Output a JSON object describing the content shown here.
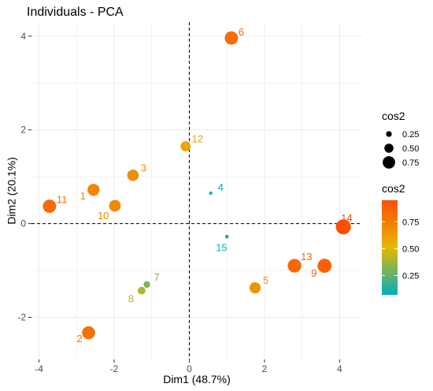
{
  "chart_data": {
    "type": "scatter",
    "title": "Individuals - PCA",
    "xlabel": "Dim1 (48.7%)",
    "ylabel": "Dim2 (20.1%)",
    "xlim": [
      -4.2,
      4.6
    ],
    "ylim": [
      -2.9,
      4.3
    ],
    "x_ticks": [
      -4,
      -2,
      0,
      2,
      4
    ],
    "y_ticks": [
      -2,
      0,
      2,
      4
    ],
    "grid": true,
    "reference_lines": {
      "x": 0,
      "y": 0
    },
    "points": [
      {
        "label": "1",
        "x": -2.55,
        "y": 0.72,
        "cos2": 0.72
      },
      {
        "label": "2",
        "x": -2.68,
        "y": -2.33,
        "cos2": 0.8
      },
      {
        "label": "3",
        "x": -1.5,
        "y": 1.03,
        "cos2": 0.68
      },
      {
        "label": "4",
        "x": 0.57,
        "y": 0.65,
        "cos2": 0.07
      },
      {
        "label": "5",
        "x": 1.75,
        "y": -1.37,
        "cos2": 0.66
      },
      {
        "label": "6",
        "x": 1.12,
        "y": 3.96,
        "cos2": 0.82
      },
      {
        "label": "7",
        "x": -1.13,
        "y": -1.3,
        "cos2": 0.32
      },
      {
        "label": "8",
        "x": -1.27,
        "y": -1.43,
        "cos2": 0.4
      },
      {
        "label": "9",
        "x": 3.6,
        "y": -0.9,
        "cos2": 0.87
      },
      {
        "label": "10",
        "x": -1.98,
        "y": 0.38,
        "cos2": 0.7
      },
      {
        "label": "11",
        "x": -3.72,
        "y": 0.37,
        "cos2": 0.82
      },
      {
        "label": "12",
        "x": -0.1,
        "y": 1.65,
        "cos2": 0.58
      },
      {
        "label": "13",
        "x": 2.8,
        "y": -0.9,
        "cos2": 0.84
      },
      {
        "label": "14",
        "x": 4.1,
        "y": -0.07,
        "cos2": 0.95
      },
      {
        "label": "15",
        "x": 1.0,
        "y": -0.28,
        "cos2": 0.1
      }
    ],
    "legend_size": {
      "title": "cos2",
      "values": [
        0.25,
        0.5,
        0.75
      ],
      "labels": [
        "0.25",
        "0.50",
        "0.75"
      ]
    },
    "legend_color": {
      "title": "cos2",
      "ticks": [
        0.25,
        0.5,
        0.75
      ],
      "labels": [
        "0.25",
        "0.50",
        "0.75"
      ],
      "range": [
        0.07,
        0.95
      ],
      "gradient": [
        "#00AFBB",
        "#E7B800",
        "#FC4E07"
      ]
    },
    "legend_placement": "right"
  }
}
